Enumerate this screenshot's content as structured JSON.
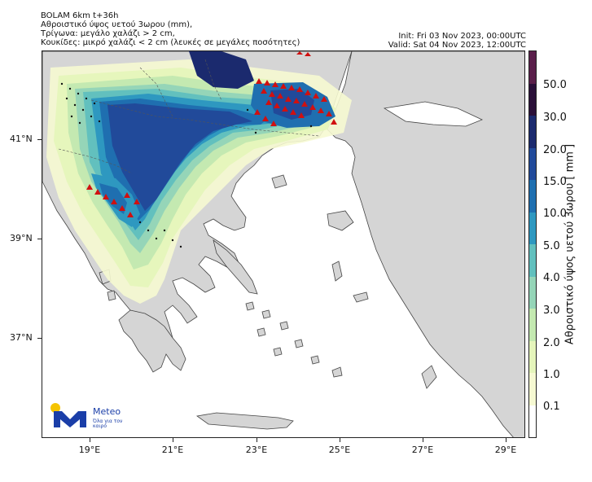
{
  "header": {
    "line1": "BOLAM 6km t+36h",
    "line2": "Αθροιστικό ύψος υετού 3ωρου (mm),",
    "line3": "Τρίγωνα: μεγάλο χαλάζι > 2 cm,",
    "line4": "Κουκίδες: μικρό χαλάζι < 2 cm (λευκές σε μεγάλες ποσότητες)",
    "init": "Init: Fri 03 Nov 2023, 00:00UTC",
    "valid": "Valid: Sat 04 Nov 2023, 12:00UTC"
  },
  "axes": {
    "lat_labels": [
      "41°N",
      "39°N",
      "37°N"
    ],
    "lon_labels": [
      "19°E",
      "21°E",
      "23°E",
      "25°E",
      "27°E",
      "29°E"
    ]
  },
  "colorbar": {
    "title": "Αθροιστικό ύψος υετού 3ωρου [ mm ]",
    "labels": [
      "0.1",
      "1.0",
      "2.0",
      "3.0",
      "4.0",
      "5.0",
      "10.0",
      "15.0",
      "20.0",
      "30.0",
      "50.0"
    ],
    "colors": [
      "#ffffff",
      "#f6f9d2",
      "#e5f5bb",
      "#c4e9b1",
      "#95d5b8",
      "#62c0be",
      "#2e98c0",
      "#1f6fb0",
      "#214a9a",
      "#1b2a6e",
      "#2a0f38",
      "#5a1f4a"
    ]
  },
  "map_colors": {
    "sea": "#ffffff",
    "land": "#d5d5d5",
    "border": "#444444",
    "hail_triangle": "#d01010"
  },
  "logo": {
    "name": "Meteo",
    "tagline": "Όλα για τον καιρό",
    "mark_color": "#1a3ea8",
    "sun_color": "#f5c400"
  }
}
